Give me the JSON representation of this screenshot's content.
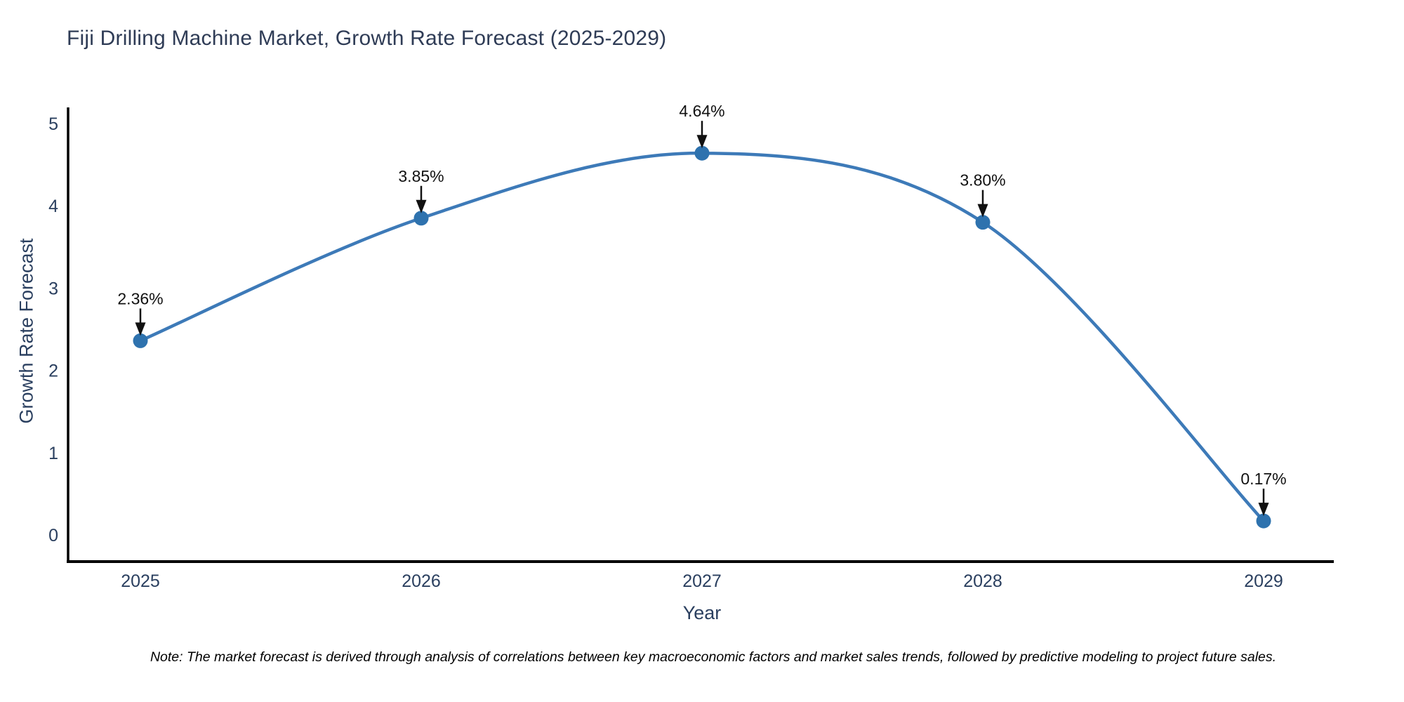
{
  "header": {
    "title": "Fiji Drilling Machine Market, Growth Rate Forecast (2025-2029)"
  },
  "chart_data": {
    "type": "line",
    "title": "Fiji Drilling Machine Market, Growth Rate Forecast (2025-2029)",
    "x": [
      2025,
      2026,
      2027,
      2028,
      2029
    ],
    "series": [
      {
        "name": "Growth Rate Forecast",
        "values": [
          2.36,
          3.85,
          4.64,
          3.8,
          0.17
        ]
      }
    ],
    "point_labels": [
      "2.36%",
      "3.85%",
      "4.64%",
      "3.80%",
      "0.17%"
    ],
    "xlabel": "Year",
    "ylabel": "Growth Rate Forecast",
    "ylim": [
      0,
      5
    ],
    "yticks": [
      0,
      1,
      2,
      3,
      4,
      5
    ],
    "grid": false,
    "legend": "none",
    "line_shape": "spline",
    "colors": {
      "line": "#3d7ab8",
      "marker": "#2e72ae",
      "axis": "#000000",
      "tick_text": "#2a3f5f",
      "title_text": "#2f3c56",
      "annotation": "#111111"
    }
  },
  "footer": {
    "note": "Note: The market forecast is derived through analysis of correlations between key macroeconomic factors and market sales trends, followed by predictive modeling to project future sales."
  }
}
